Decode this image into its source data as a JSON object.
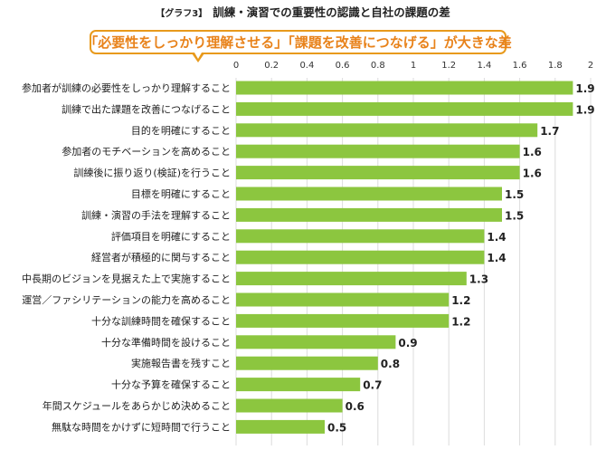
{
  "header": {
    "graph_tag": "【グラフ3】",
    "title": "訓練・演習での重要性の認識と自社の課題の差"
  },
  "callout": {
    "text": "「必要性をしっかり理解させる」「課題を改善につなげる」が大きな差"
  },
  "colors": {
    "bar": "#8cc63f",
    "callout_border": "#e89a1c",
    "callout_text": "#e8821a",
    "grid": "#dcdcdc"
  },
  "chart_data": {
    "type": "bar",
    "orientation": "horizontal",
    "xlim": [
      0,
      2
    ],
    "ticks": [
      "0",
      "0.2",
      "0.4",
      "0.6",
      "0.8",
      "1",
      "1.2",
      "1.4",
      "1.6",
      "1.8",
      "2"
    ],
    "grid": true,
    "categories": [
      "参加者が訓練の必要性をしっかり理解すること",
      "訓練で出た課題を改善につなげること",
      "目的を明確にすること",
      "参加者のモチベーションを高めること",
      "訓練後に振り返り(検証)を行うこと",
      "目標を明確にすること",
      "訓練・演習の手法を理解すること",
      "評価項目を明確にすること",
      "経営者が積極的に関与すること",
      "中長期のビジョンを見据えた上で実施すること",
      "運営／ファシリテーションの能力を高めること",
      "十分な訓練時間を確保すること",
      "十分な準備時間を設けること",
      "実施報告書を残すこと",
      "十分な予算を確保すること",
      "年間スケジュールをあらかじめ決めること",
      "無駄な時間をかけずに短時間で行うこと"
    ],
    "values": [
      1.9,
      1.9,
      1.7,
      1.6,
      1.6,
      1.5,
      1.5,
      1.4,
      1.4,
      1.3,
      1.2,
      1.2,
      0.9,
      0.8,
      0.7,
      0.6,
      0.5
    ],
    "value_labels": [
      "1.9",
      "1.9",
      "1.7",
      "1.6",
      "1.6",
      "1.5",
      "1.5",
      "1.4",
      "1.4",
      "1.3",
      "1.2",
      "1.2",
      "0.9",
      "0.8",
      "0.7",
      "0.6",
      "0.5"
    ]
  }
}
